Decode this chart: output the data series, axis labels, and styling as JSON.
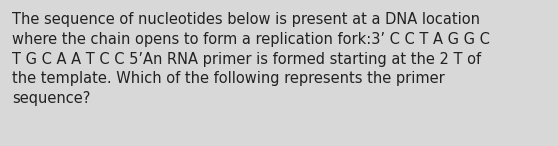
{
  "text": "The sequence of nucleotides below is present at a DNA location\nwhere the chain opens to form a replication fork:3’ C C T A G G C\nT G C A A T C C 5’An RNA primer is formed starting at the 2 T of\nthe template. Which of the following represents the primer\nsequence?",
  "background_color": "#d8d8d8",
  "text_color": "#222222",
  "font_size": 10.5,
  "font_family": "DejaVu Sans",
  "font_weight": "normal"
}
